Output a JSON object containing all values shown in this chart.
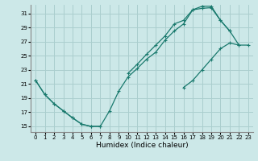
{
  "xlabel": "Humidex (Indice chaleur)",
  "bg_color": "#cce8e8",
  "grid_color": "#aacece",
  "line_color": "#1a7a6e",
  "xlim": [
    -0.5,
    23.5
  ],
  "ylim": [
    14.2,
    32.2
  ],
  "yticks": [
    15,
    17,
    19,
    21,
    23,
    25,
    27,
    29,
    31
  ],
  "xticks": [
    0,
    1,
    2,
    3,
    4,
    5,
    6,
    7,
    8,
    9,
    10,
    11,
    12,
    13,
    14,
    15,
    16,
    17,
    18,
    19,
    20,
    21,
    22,
    23
  ],
  "line1_x": [
    0,
    1,
    2,
    3,
    4,
    5,
    6,
    7,
    8,
    9,
    10,
    11,
    12,
    13,
    14,
    15,
    16,
    17,
    18,
    19,
    20,
    21
  ],
  "line1_y": [
    21.5,
    19.5,
    18.2,
    17.2,
    16.2,
    15.3,
    15.0,
    15.0,
    17.2,
    20.0,
    22.0,
    23.2,
    24.5,
    25.5,
    27.2,
    28.5,
    29.5,
    31.5,
    31.7,
    31.8,
    30.0,
    28.5
  ],
  "line2_x": [
    10,
    11,
    12,
    13,
    14,
    15,
    16,
    17,
    18,
    19,
    20,
    21,
    22
  ],
  "line2_y": [
    22.5,
    23.8,
    25.2,
    26.5,
    27.8,
    29.5,
    30.0,
    31.5,
    32.0,
    32.0,
    30.0,
    28.5,
    26.5
  ],
  "line3_x": [
    0,
    1,
    2,
    3,
    4,
    5,
    6,
    7,
    8,
    9,
    10,
    11,
    12,
    13,
    14,
    15,
    16,
    17,
    18,
    19,
    20,
    21,
    22,
    23
  ],
  "line3_y": [
    21.5,
    19.5,
    18.2,
    17.2,
    16.2,
    15.3,
    15.0,
    15.0,
    null,
    null,
    null,
    null,
    null,
    null,
    null,
    null,
    20.5,
    21.5,
    23.0,
    24.5,
    26.0,
    26.8,
    26.5,
    26.5
  ]
}
